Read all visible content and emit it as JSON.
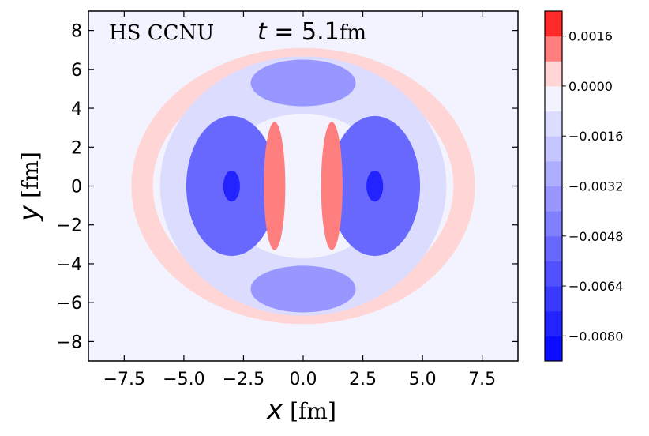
{
  "chart_data": {
    "type": "heatmap",
    "title": "",
    "annotation": {
      "model": "HS  CCNU",
      "time_var": "t",
      "time_eq": " = ",
      "time_value": "5.1",
      "time_unit": "fm"
    },
    "xlabel": {
      "var": "x",
      "unit": " [fm]"
    },
    "ylabel": {
      "var": "y",
      "unit": " [fm]"
    },
    "xlim": [
      -9,
      9
    ],
    "ylim": [
      -9,
      9
    ],
    "xticks": [
      -7.5,
      -5.0,
      -2.5,
      0.0,
      2.5,
      5.0,
      7.5
    ],
    "xtick_labels": [
      "−7.5",
      "−5.0",
      "−2.5",
      "0.0",
      "2.5",
      "5.0",
      "7.5"
    ],
    "yticks": [
      -8,
      -6,
      -4,
      -2,
      0,
      2,
      4,
      6,
      8
    ],
    "ytick_labels": [
      "−8",
      "−6",
      "−4",
      "−2",
      "0",
      "2",
      "4",
      "6",
      "8"
    ],
    "colorbar": {
      "vmin": -0.0088,
      "vmax": 0.0024,
      "levels": [
        -0.0088,
        -0.008,
        -0.0072,
        -0.0064,
        -0.0056,
        -0.0048,
        -0.004,
        -0.0032,
        -0.0024,
        -0.0016,
        -0.0008,
        0.0,
        0.0008,
        0.0016,
        0.0024
      ],
      "ticks": [
        -0.008,
        -0.0064,
        -0.0048,
        -0.0032,
        -0.0016,
        0.0,
        0.0016
      ],
      "tick_labels": [
        "−0.0080",
        "−0.0064",
        "−0.0048",
        "−0.0032",
        "−0.0016",
        "0.0000",
        "0.0016"
      ],
      "colormap": "bwr",
      "color_low": "#0000ff",
      "color_mid": "#ffffff",
      "color_high": "#ff0000"
    },
    "background_value": -0.0004,
    "features": [
      {
        "name": "outer-shell-positive",
        "kind": "ring",
        "cx": 0,
        "cy": 0,
        "rx": 7.2,
        "ry": 7.0,
        "width": 0.9,
        "value": 0.0005
      },
      {
        "name": "outer-shell-negative",
        "kind": "ring",
        "cx": 0,
        "cy": 0,
        "rx": 6.0,
        "ry": 6.4,
        "width": 2.4,
        "value": -0.0014
      },
      {
        "name": "left-negative-lobe",
        "kind": "blob",
        "cx": -3.0,
        "cy": 0.0,
        "rx": 1.9,
        "ry": 3.6,
        "value": -0.005
      },
      {
        "name": "right-negative-lobe",
        "kind": "blob",
        "cx": 3.0,
        "cy": 0.0,
        "rx": 1.9,
        "ry": 3.6,
        "value": -0.005
      },
      {
        "name": "left-minimum",
        "kind": "blob",
        "cx": -3.0,
        "cy": 0.0,
        "rx": 0.35,
        "ry": 0.8,
        "value": -0.0078
      },
      {
        "name": "right-minimum",
        "kind": "blob",
        "cx": 3.0,
        "cy": 0.0,
        "rx": 0.35,
        "ry": 0.8,
        "value": -0.0078
      },
      {
        "name": "top-negative-lobe",
        "kind": "blob",
        "cx": 0.0,
        "cy": 5.3,
        "rx": 2.2,
        "ry": 1.2,
        "value": -0.0035
      },
      {
        "name": "bottom-negative-lobe",
        "kind": "blob",
        "cx": 0.0,
        "cy": -5.3,
        "rx": 2.2,
        "ry": 1.2,
        "value": -0.0035
      },
      {
        "name": "central-positive-left",
        "kind": "blob",
        "cx": -1.2,
        "cy": 0.0,
        "rx": 0.45,
        "ry": 3.3,
        "value": 0.0012
      },
      {
        "name": "central-positive-right",
        "kind": "blob",
        "cx": 1.2,
        "cy": 0.0,
        "rx": 0.45,
        "ry": 3.3,
        "value": 0.0012
      }
    ]
  }
}
